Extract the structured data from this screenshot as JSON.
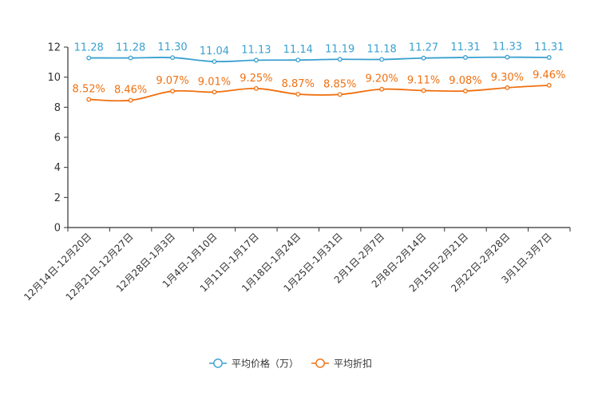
{
  "chart_data": {
    "type": "line",
    "categories": [
      "12月14日-12月20日",
      "12月21日-12月27日",
      "12月28日-1月3日",
      "1月4日-1月10日",
      "1月11日-1月17日",
      "1月18日-1月24日",
      "1月25日-1月31日",
      "2月1日-2月7日",
      "2月8日-2月14日",
      "2月15日-2月21日",
      "2月22日-2月28日",
      "3月1日-3月7日"
    ],
    "ylim": [
      0,
      12
    ],
    "yticks": [
      0,
      2,
      4,
      6,
      8,
      10,
      12
    ],
    "series": [
      {
        "name": "平均价格（万）",
        "color": "#3aa0d0",
        "values": [
          11.28,
          11.28,
          11.3,
          11.04,
          11.13,
          11.14,
          11.19,
          11.18,
          11.27,
          11.31,
          11.33,
          11.31
        ],
        "labels": [
          "11.28",
          "11.28",
          "11.30",
          "11.04",
          "11.13",
          "11.14",
          "11.19",
          "11.18",
          "11.27",
          "11.31",
          "11.33",
          "11.31"
        ]
      },
      {
        "name": "平均折扣",
        "color": "#f07010",
        "values": [
          8.52,
          8.46,
          9.07,
          9.01,
          9.25,
          8.87,
          8.85,
          9.2,
          9.11,
          9.08,
          9.3,
          9.46
        ],
        "labels": [
          "8.52%",
          "8.46%",
          "9.07%",
          "9.01%",
          "9.25%",
          "8.87%",
          "8.85%",
          "9.20%",
          "9.11%",
          "9.08%",
          "9.30%",
          "9.46%"
        ]
      }
    ],
    "legend_position": "bottom-center"
  }
}
